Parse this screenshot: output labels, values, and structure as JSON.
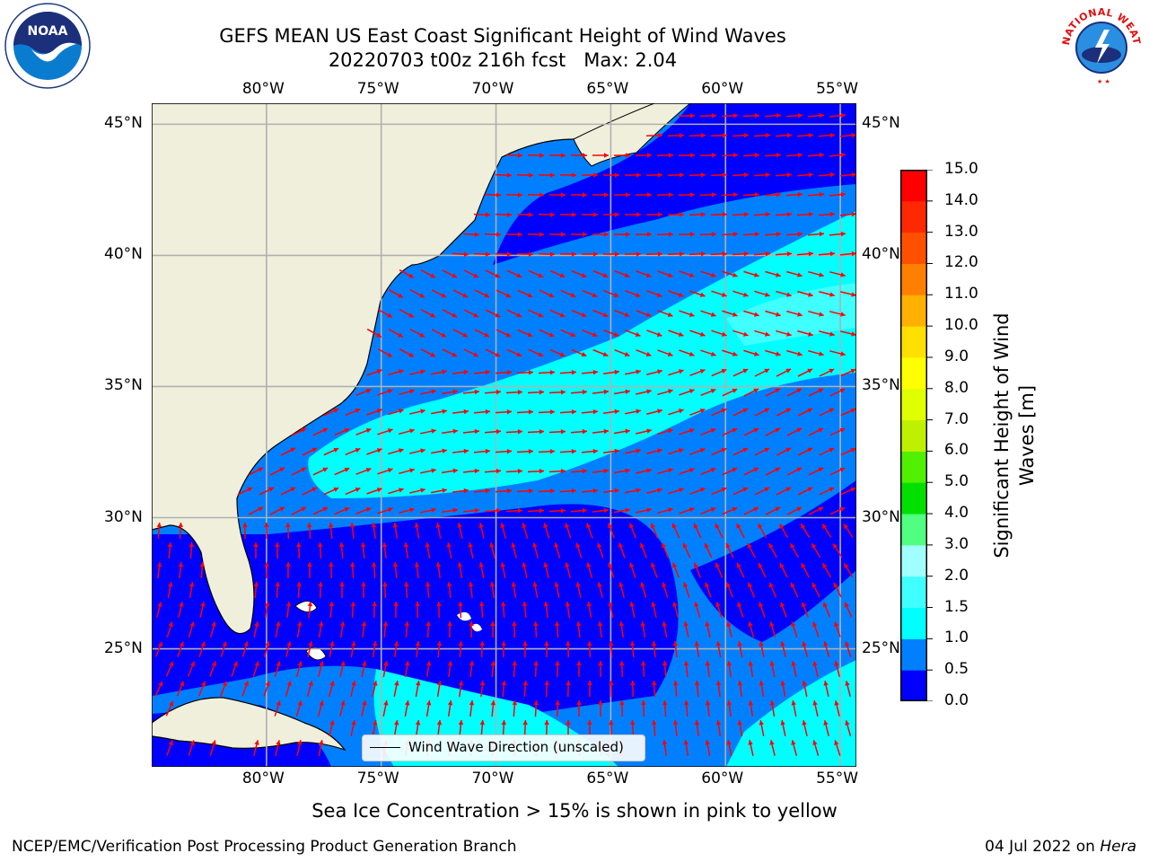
{
  "title": {
    "line1": "GEFS MEAN US East Coast Significant Height of Wind Waves",
    "line2": "20220703 t00z 216h fcst   Max: 2.04"
  },
  "logos": {
    "noaa_text": "NOAA",
    "nws_text": "NATIONAL WEATHER SERVICE"
  },
  "map": {
    "lon_labels": [
      "80°W",
      "75°W",
      "70°W",
      "65°W",
      "60°W",
      "55°W"
    ],
    "lat_labels": [
      "45°N",
      "40°N",
      "35°N",
      "30°N",
      "25°N"
    ],
    "extent": {
      "lon_min": -85,
      "lon_max": -54.3,
      "lat_min": 20.5,
      "lat_max": 45.8
    },
    "legend_text": "Wind Wave Direction (unscaled)",
    "colors": {
      "land": "#efefdc",
      "grid": "#b0b0b0",
      "arrow": "#ff0000"
    }
  },
  "colorbar": {
    "label": "Significant Height of Wind Waves [m]",
    "ticks": [
      "0.0",
      "0.5",
      "1.0",
      "1.5",
      "2.0",
      "3.0",
      "4.0",
      "5.0",
      "6.0",
      "7.0",
      "8.0",
      "9.0",
      "10.0",
      "11.0",
      "12.0",
      "13.0",
      "14.0",
      "15.0"
    ],
    "colors": [
      "#0000ff",
      "#0080ff",
      "#00ffff",
      "#40ffff",
      "#a0ffff",
      "#50ff80",
      "#00e000",
      "#50f000",
      "#bff000",
      "#e0ff00",
      "#ffff00",
      "#ffe000",
      "#ffb000",
      "#ff8000",
      "#ff5000",
      "#ff2800",
      "#ff0000"
    ]
  },
  "footnote": "Sea Ice Concentration > 15% is shown in pink to yellow",
  "credit": "NCEP/EMC/Verification Post Processing Product Generation Branch",
  "datestamp": {
    "date": "04 Jul 2022 on ",
    "machine": "Hera"
  }
}
